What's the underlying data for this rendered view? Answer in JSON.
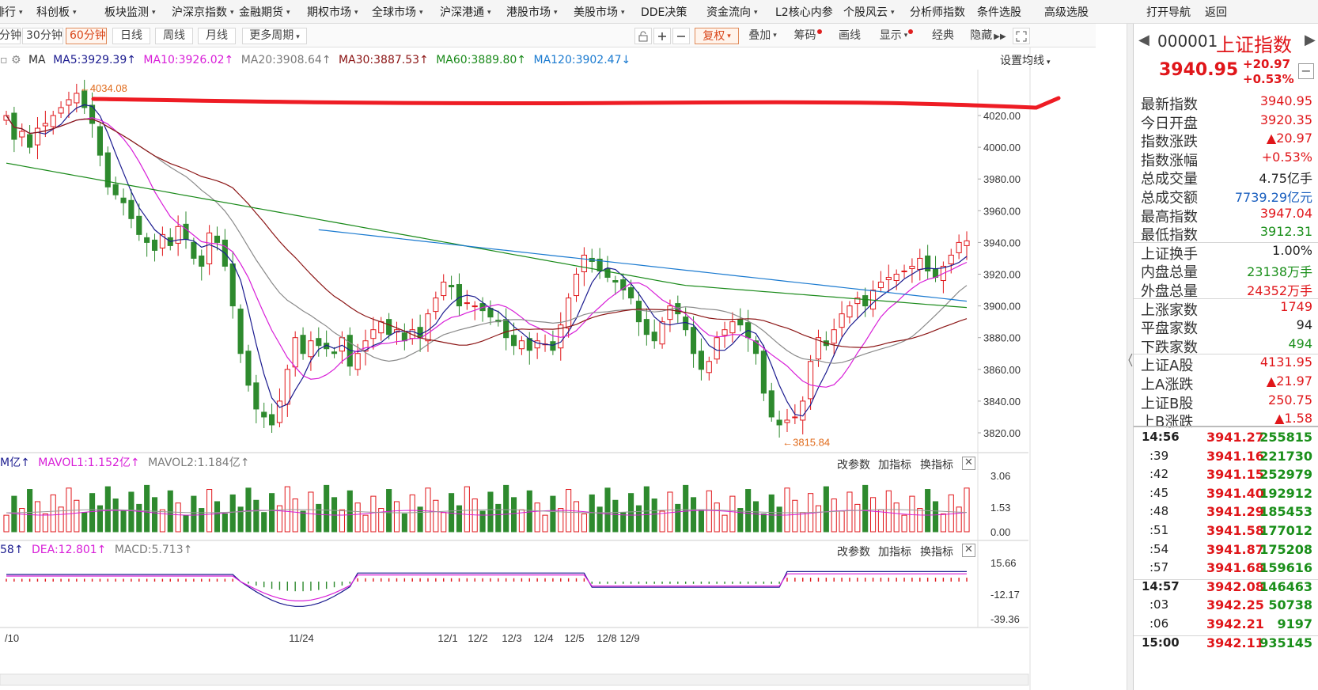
{
  "topmenu": [
    {
      "label": "排行",
      "caret": true
    },
    {
      "label": "科创板",
      "caret": true
    },
    {
      "label": "板块监测",
      "caret": true
    },
    {
      "label": "沪深京指数",
      "caret": true
    },
    {
      "label": "金融期货",
      "caret": true
    },
    {
      "label": "期权市场",
      "caret": true
    },
    {
      "label": "全球市场",
      "caret": true
    },
    {
      "label": "沪深港通",
      "caret": true
    },
    {
      "label": "港股市场",
      "caret": true
    },
    {
      "label": "美股市场",
      "caret": true
    },
    {
      "label": "DDE决策",
      "caret": false
    },
    {
      "label": "资金流向",
      "caret": true
    },
    {
      "label": "L2核心内参",
      "caret": false
    },
    {
      "label": "个股风云",
      "caret": true
    },
    {
      "label": "分析师指数",
      "caret": false
    },
    {
      "label": "条件选股",
      "caret": false
    },
    {
      "label": "高级选股",
      "caret": false
    },
    {
      "label": "打开导航",
      "caret": false
    },
    {
      "label": "返回",
      "caret": false
    }
  ],
  "periods": [
    "分钟",
    "30分钟",
    "60分钟",
    "日线",
    "周线",
    "月线",
    "更多周期"
  ],
  "active_period": "60分钟",
  "more_period_caret": "▾",
  "tools": {
    "fuquan": "复权",
    "diejia": "叠加",
    "chouma": "筹码",
    "huaxian": "画线",
    "xianshi": "显示",
    "jingdian": "经典",
    "yincang": "隐藏"
  },
  "ma": {
    "label": "MA",
    "items": [
      {
        "text": "MA5:3929.39",
        "arrow": "↑",
        "color": "#1b1b8f"
      },
      {
        "text": "MA10:3926.02",
        "arrow": "↑",
        "color": "#d81ed8"
      },
      {
        "text": "MA20:3908.64",
        "arrow": "↑",
        "color": "#7a7a7a"
      },
      {
        "text": "MA30:3887.53",
        "arrow": "↑",
        "color": "#8b1414"
      },
      {
        "text": "MA60:3889.80",
        "arrow": "↑",
        "color": "#1a8a1a"
      },
      {
        "text": "MA120:3902.47",
        "arrow": "↓",
        "color": "#1a7ad0"
      }
    ],
    "settings": "设置均线"
  },
  "price_axis": {
    "ticks": [
      4020,
      4000,
      3980,
      3960,
      3940,
      3920,
      3900,
      3880,
      3860,
      3840,
      3820
    ],
    "labels": [
      "4020.00",
      "4000.00",
      "3980.00",
      "3960.00",
      "3940.00",
      "3920.00",
      "3900.00",
      "3880.00",
      "3860.00",
      "3840.00",
      "3820.00"
    ]
  },
  "annotations": {
    "high": "←4034.08",
    "low": "←3815.84",
    "high_value": 4034.08,
    "low_value": 3815.84
  },
  "volume": {
    "header": [
      {
        "text": "M亿↑",
        "color": "#1b1b8f"
      },
      {
        "text": "MAVOL1:1.152亿↑",
        "color": "#d81ed8"
      },
      {
        "text": "MAVOL2:1.184亿↑",
        "color": "#7a7a7a"
      }
    ],
    "axis": [
      "3.06",
      "1.53",
      "0.00"
    ],
    "buttons": [
      "改参数",
      "加指标",
      "换指标"
    ]
  },
  "macd": {
    "header": [
      {
        "text": "58↑",
        "color": "#1b1b8f"
      },
      {
        "text": "DEA:12.801↑",
        "color": "#d81ed8"
      },
      {
        "text": "MACD:5.713↑",
        "color": "#7a7a7a"
      }
    ],
    "axis": [
      "15.66",
      "-12.17",
      "-39.36"
    ],
    "buttons": [
      "改参数",
      "加指标",
      "换指标"
    ]
  },
  "xaxis": [
    "/10",
    "11/24",
    "12/1",
    "12/2",
    "12/3",
    "12/4",
    "12/5",
    "12/8",
    "12/9"
  ],
  "quote": {
    "code": "000001",
    "name": "上证指数",
    "price": "3940.95",
    "change": "+20.97",
    "pct": "+0.53%",
    "rows": [
      {
        "label": "最新指数",
        "value": "3940.95",
        "cls": "red"
      },
      {
        "label": "今日开盘",
        "value": "3920.35",
        "cls": "red"
      },
      {
        "label": "指数涨跌",
        "value": "▲20.97",
        "cls": "red"
      },
      {
        "label": "指数涨幅",
        "value": "+0.53%",
        "cls": "red"
      },
      {
        "label": "总成交量",
        "value": "4.75亿手",
        "cls": "dark"
      },
      {
        "label": "总成交额",
        "value": "7739.29亿元",
        "cls": "blue"
      },
      {
        "label": "最高指数",
        "value": "3947.04",
        "cls": "red"
      },
      {
        "label": "最低指数",
        "value": "3912.31",
        "cls": "green"
      },
      {
        "label": "上证换手",
        "value": "1.00%",
        "cls": "dark"
      },
      {
        "label": "内盘总量",
        "value": "23138万手",
        "cls": "green"
      },
      {
        "label": "外盘总量",
        "value": "24352万手",
        "cls": "red"
      },
      {
        "label": "上涨家数",
        "value": "1749",
        "cls": "red"
      },
      {
        "label": "平盘家数",
        "value": "94",
        "cls": "dark"
      },
      {
        "label": "下跌家数",
        "value": "494",
        "cls": "green"
      },
      {
        "label": "上证A股",
        "value": "4131.95",
        "cls": "red"
      },
      {
        "label": "上A涨跌",
        "value": "▲21.97",
        "cls": "red"
      },
      {
        "label": "上证B股",
        "value": "250.75",
        "cls": "red"
      },
      {
        "label": "上B涨跌",
        "value": "▲1.58",
        "cls": "red"
      }
    ],
    "ticks": [
      {
        "time": "14:56",
        "price": "3941.27",
        "vol": "255815"
      },
      {
        "time": ":39",
        "price": "3941.16",
        "vol": "221730"
      },
      {
        "time": ":42",
        "price": "3941.15",
        "vol": "252979"
      },
      {
        "time": ":45",
        "price": "3941.40",
        "vol": "192912"
      },
      {
        "time": ":48",
        "price": "3941.29",
        "vol": "185453"
      },
      {
        "time": ":51",
        "price": "3941.58",
        "vol": "177012"
      },
      {
        "time": ":54",
        "price": "3941.87",
        "vol": "175208"
      },
      {
        "time": ":57",
        "price": "3941.68",
        "vol": "159616"
      },
      {
        "time": "14:57",
        "price": "3942.08",
        "vol": "146463"
      },
      {
        "time": ":03",
        "price": "3942.25",
        "vol": "50738"
      },
      {
        "time": ":06",
        "price": "3942.21",
        "vol": "9197"
      },
      {
        "time": "15:00",
        "price": "3942.11",
        "vol": "935145"
      }
    ]
  },
  "colors": {
    "up": "#e0161a",
    "down": "#2e8a2e",
    "redline": "#ee1c24"
  }
}
